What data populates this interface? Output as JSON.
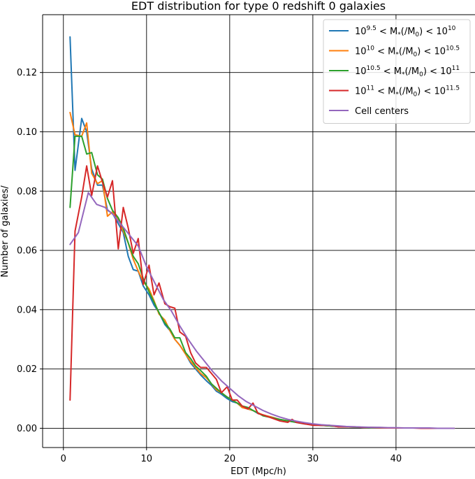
{
  "chart_data": {
    "type": "line",
    "title": "EDT distribution for type 0 redshift 0 galaxies",
    "xlabel": "EDT (Mpc/h)",
    "ylabel": "Number of galaxies/",
    "xlim": [
      -2.5,
      49.5
    ],
    "ylim": [
      -0.0065,
      0.1395
    ],
    "x_ticks": [
      0,
      10,
      20,
      30,
      40
    ],
    "x_tick_labels": [
      "0",
      "10",
      "20",
      "30",
      "40"
    ],
    "y_ticks": [
      0.0,
      0.02,
      0.04,
      0.06,
      0.08,
      0.1,
      0.12
    ],
    "y_tick_labels": [
      "0.00",
      "0.02",
      "0.04",
      "0.06",
      "0.08",
      "0.10",
      "0.12"
    ],
    "grid": true,
    "legend_position": "top-right",
    "series": [
      {
        "name": "10^9.5 < M*(/M0) < 10^10",
        "legend": {
          "base1": "10",
          "exp1": "9.5",
          "mid": " < M",
          "sub": "*",
          "rel": "(/M",
          "sub0": "0",
          "close": ") < 10",
          "exp2": "10"
        },
        "color": "#1f77b4",
        "x": [
          0.8,
          1.4,
          2.2,
          2.8,
          3.4,
          4.1,
          4.7,
          5.3,
          5.9,
          6.6,
          7.2,
          7.8,
          8.4,
          9.0,
          9.6,
          10.3,
          10.9,
          11.5,
          12.2,
          12.8,
          13.4,
          14.0,
          14.7,
          15.3,
          15.9,
          16.5,
          17.2,
          17.8,
          18.4,
          19.0,
          19.7,
          20.3,
          20.9,
          21.5,
          22.2,
          22.8,
          23.4,
          24.0,
          25.0,
          26.0,
          27.0,
          28.0,
          29.0,
          30.0,
          31.0,
          32.0,
          33.0,
          34.0,
          35.0,
          36.0,
          37.0,
          38.0,
          39.0,
          40.0,
          41.0,
          42.0,
          43.0,
          44.0,
          45.0,
          46.0,
          47.0
        ],
        "y": [
          0.132,
          0.087,
          0.1045,
          0.1,
          0.0875,
          0.082,
          0.082,
          0.0735,
          0.0725,
          0.069,
          0.066,
          0.058,
          0.0535,
          0.053,
          0.048,
          0.045,
          0.0415,
          0.039,
          0.035,
          0.033,
          0.03,
          0.028,
          0.025,
          0.022,
          0.02,
          0.018,
          0.016,
          0.0145,
          0.0125,
          0.0115,
          0.01,
          0.009,
          0.0085,
          0.007,
          0.0065,
          0.006,
          0.005,
          0.0045,
          0.0038,
          0.003,
          0.0025,
          0.002,
          0.0015,
          0.0012,
          0.001,
          0.0008,
          0.0006,
          0.0005,
          0.0004,
          0.0003,
          0.0002,
          0.0002,
          0.0001,
          0.0001,
          0.0001,
          0.0001,
          0.0001,
          0.0,
          0.0,
          0.0,
          0.0
        ]
      },
      {
        "name": "10^10 < M*(/M0) < 10^10.5",
        "legend": {
          "base1": "10",
          "exp1": "10",
          "mid": " < M",
          "sub": "*",
          "rel": "(/M",
          "sub0": "0",
          "close": ") < 10",
          "exp2": "10.5"
        },
        "color": "#ff7f0e",
        "x": [
          0.8,
          1.4,
          2.2,
          2.8,
          3.4,
          4.1,
          4.7,
          5.3,
          5.9,
          6.6,
          7.2,
          7.8,
          8.4,
          9.0,
          9.6,
          10.3,
          10.9,
          11.5,
          12.2,
          12.8,
          13.4,
          14.0,
          14.7,
          15.3,
          15.9,
          16.5,
          17.2,
          17.8,
          18.4,
          19.0,
          19.7,
          20.3,
          20.9,
          21.5,
          22.2,
          22.8,
          23.4,
          24.0,
          25.0,
          26.0,
          27.0,
          28.0,
          29.0,
          30.0,
          31.0,
          32.0,
          33.0,
          34.0,
          35.0,
          36.0,
          37.0,
          38.0,
          39.0,
          40.0,
          41.0,
          42.0,
          43.0,
          44.0,
          45.0,
          46.0,
          47.0
        ],
        "y": [
          0.1065,
          0.099,
          0.0985,
          0.103,
          0.086,
          0.0825,
          0.0835,
          0.0715,
          0.073,
          0.0705,
          0.0665,
          0.0625,
          0.057,
          0.053,
          0.0495,
          0.047,
          0.043,
          0.0385,
          0.0365,
          0.033,
          0.03,
          0.028,
          0.025,
          0.0225,
          0.0205,
          0.0185,
          0.017,
          0.015,
          0.013,
          0.012,
          0.0105,
          0.0095,
          0.0085,
          0.007,
          0.0065,
          0.006,
          0.0052,
          0.0045,
          0.0038,
          0.003,
          0.0025,
          0.0022,
          0.0016,
          0.0012,
          0.001,
          0.0008,
          0.0006,
          0.0005,
          0.0004,
          0.0003,
          0.0002,
          0.0002,
          0.0001,
          0.0001,
          0.0001,
          0.0001,
          0.0001,
          0.0,
          0.0,
          0.0,
          0.0
        ]
      },
      {
        "name": "10^10.5 < M*(/M0) < 10^11",
        "legend": {
          "base1": "10",
          "exp1": "10.5",
          "mid": " < M",
          "sub": "*",
          "rel": "(/M",
          "sub0": "0",
          "close": ") < 10",
          "exp2": "11"
        },
        "color": "#2ca02c",
        "x": [
          0.8,
          1.4,
          2.2,
          2.8,
          3.4,
          4.1,
          4.7,
          5.3,
          5.9,
          6.6,
          7.2,
          7.8,
          8.4,
          9.0,
          9.6,
          10.3,
          10.9,
          11.5,
          12.2,
          12.8,
          13.4,
          14.0,
          14.7,
          15.3,
          15.9,
          16.5,
          17.2,
          17.8,
          18.4,
          19.0,
          19.7,
          20.3,
          20.9,
          21.5,
          22.2,
          22.8,
          23.4,
          24.0,
          25.0,
          26.0,
          27.0,
          28.0,
          29.0,
          30.0,
          31.0,
          32.0,
          33.0,
          34.0,
          35.0,
          36.0,
          37.0,
          38.0,
          39.0,
          40.0,
          41.0,
          42.0,
          43.0,
          44.0,
          45.0,
          46.0,
          47.0
        ],
        "y": [
          0.0745,
          0.0985,
          0.0985,
          0.0925,
          0.093,
          0.0855,
          0.084,
          0.0775,
          0.0735,
          0.071,
          0.0675,
          0.0625,
          0.058,
          0.0555,
          0.0505,
          0.046,
          0.0425,
          0.039,
          0.0355,
          0.0335,
          0.0305,
          0.0305,
          0.0255,
          0.0235,
          0.021,
          0.0195,
          0.0175,
          0.015,
          0.0135,
          0.012,
          0.0105,
          0.0095,
          0.0085,
          0.0075,
          0.007,
          0.006,
          0.0052,
          0.0042,
          0.0036,
          0.003,
          0.0025,
          0.002,
          0.0015,
          0.0012,
          0.001,
          0.0008,
          0.0006,
          0.0005,
          0.0004,
          0.0003,
          0.0002,
          0.0002,
          0.0001,
          0.0001,
          0.0001,
          0.0001,
          0.0001,
          0.0,
          0.0,
          0.0,
          0.0
        ]
      },
      {
        "name": "10^11 < M*(/M0) < 10^11.5",
        "legend": {
          "base1": "10",
          "exp1": "11",
          "mid": " < M",
          "sub": "*",
          "rel": "(/M",
          "sub0": "0",
          "close": ") < 10",
          "exp2": "11.5"
        },
        "color": "#d62728",
        "x": [
          0.8,
          1.4,
          2.2,
          2.8,
          3.4,
          4.1,
          4.7,
          5.3,
          5.9,
          6.6,
          7.2,
          7.8,
          8.4,
          9.0,
          9.6,
          10.3,
          10.9,
          11.5,
          12.2,
          12.8,
          13.4,
          14.0,
          14.7,
          15.3,
          15.9,
          16.5,
          17.2,
          17.8,
          18.4,
          19.0,
          19.7,
          20.3,
          20.9,
          21.5,
          22.2,
          22.8,
          23.4,
          24.0,
          25.0,
          26.0,
          27.0,
          27.5,
          28.0,
          29.0,
          30.0,
          31.0,
          32.0,
          33.0,
          34.0,
          35.0,
          36.0,
          37.0,
          38.0,
          39.0,
          40.0,
          41.0,
          42.0,
          43.0,
          44.0,
          45.0,
          46.0,
          47.0
        ],
        "y": [
          0.0095,
          0.0665,
          0.078,
          0.0885,
          0.0785,
          0.0885,
          0.083,
          0.078,
          0.0835,
          0.0605,
          0.0745,
          0.0675,
          0.059,
          0.064,
          0.0485,
          0.055,
          0.045,
          0.049,
          0.042,
          0.041,
          0.0405,
          0.0325,
          0.031,
          0.0255,
          0.022,
          0.0205,
          0.0205,
          0.0185,
          0.0165,
          0.012,
          0.014,
          0.0095,
          0.0095,
          0.0075,
          0.0065,
          0.0085,
          0.005,
          0.0045,
          0.0035,
          0.0025,
          0.002,
          0.003,
          0.002,
          0.0015,
          0.001,
          0.001,
          0.001,
          0.0005,
          0.0005,
          0.0005,
          0.0003,
          0.0003,
          0.0002,
          0.0001,
          0.0001,
          0.0001,
          0.0001,
          0.0,
          0.0,
          0.0,
          0.0,
          0.0
        ]
      },
      {
        "name": "Cell centers",
        "legend": {
          "plain": "Cell centers"
        },
        "color": "#9467bd",
        "x": [
          0.8,
          1.8,
          3.0,
          4.0,
          5.0,
          6.0,
          7.0,
          8.0,
          9.0,
          10.0,
          11.0,
          12.0,
          13.0,
          14.0,
          15.0,
          16.0,
          17.0,
          18.0,
          19.0,
          20.0,
          21.0,
          22.0,
          23.0,
          24.0,
          25.0,
          26.0,
          27.0,
          28.0,
          29.0,
          30.0,
          31.0,
          32.0,
          33.0,
          34.0,
          35.0,
          36.0,
          37.0,
          38.0,
          39.0,
          40.0,
          41.0,
          42.0,
          43.0,
          44.0,
          45.0,
          46.0,
          47.0
        ],
        "y": [
          0.062,
          0.066,
          0.0795,
          0.0755,
          0.0745,
          0.072,
          0.0685,
          0.065,
          0.0615,
          0.0545,
          0.049,
          0.0435,
          0.0395,
          0.0345,
          0.03,
          0.026,
          0.0225,
          0.019,
          0.016,
          0.0135,
          0.011,
          0.009,
          0.0075,
          0.006,
          0.0048,
          0.0038,
          0.003,
          0.0024,
          0.0019,
          0.0015,
          0.0012,
          0.001,
          0.0008,
          0.0006,
          0.0005,
          0.0004,
          0.0003,
          0.0003,
          0.0002,
          0.0002,
          0.0001,
          0.0001,
          0.0001,
          0.0001,
          0.0,
          0.0,
          0.0
        ]
      }
    ]
  }
}
